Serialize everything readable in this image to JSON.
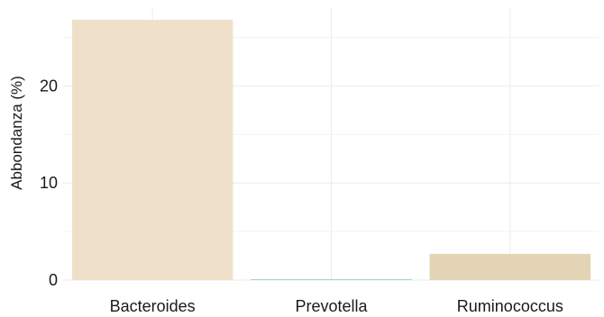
{
  "chart_data": {
    "type": "bar",
    "categories": [
      "Bacteroides",
      "Prevotella",
      "Ruminococcus"
    ],
    "values": [
      26.8,
      0.05,
      2.7
    ],
    "colors": [
      "#efe1c9",
      "#a8d3c8",
      "#e2d4b5"
    ],
    "title": "",
    "xlabel": "",
    "ylabel": "Abbondanza (%)",
    "ylim": [
      0,
      28.1
    ],
    "yticks": [
      0,
      10,
      20
    ],
    "grid": true
  }
}
